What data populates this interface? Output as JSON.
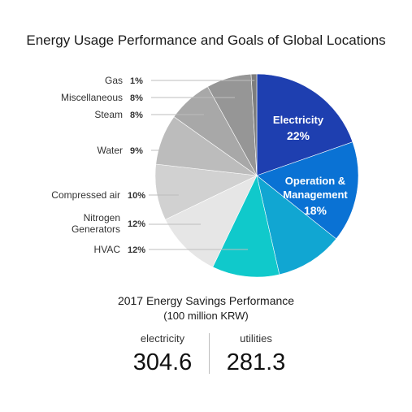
{
  "chart_data": {
    "type": "pie",
    "title": "Energy Usage Performance and Goals of Global Locations",
    "slices": [
      {
        "label": "Electricity",
        "value": 22,
        "pct": "22%",
        "color": "#1e3fb0",
        "inside": true
      },
      {
        "label": "Operation & Management",
        "label_lines": [
          "Operation &",
          "Management"
        ],
        "value": 18,
        "pct": "18%",
        "color": "#0a72d4",
        "inside": true
      },
      {
        "label": "",
        "value": 12,
        "pct": "",
        "color": "#11a6d2",
        "inside": true
      },
      {
        "label": "HVAC",
        "value": 12,
        "pct": "12%",
        "color": "#10c9cb",
        "inside": false
      },
      {
        "label": "Nitrogen Generators",
        "label_lines": [
          "Nitrogen",
          "Generators"
        ],
        "value": 12,
        "pct": "12%",
        "color": "#e6e6e6",
        "inside": false
      },
      {
        "label": "Compressed air",
        "value": 10,
        "pct": "10%",
        "color": "#d1d1d1",
        "inside": false
      },
      {
        "label": "Water",
        "value": 9,
        "pct": "9%",
        "color": "#bcbcbc",
        "inside": false
      },
      {
        "label": "Steam",
        "value": 8,
        "pct": "8%",
        "color": "#a8a8a8",
        "inside": false
      },
      {
        "label": "Miscellaneous",
        "value": 8,
        "pct": "8%",
        "color": "#969696",
        "inside": false
      },
      {
        "label": "Gas",
        "value": 1,
        "pct": "1%",
        "color": "#7d7d7d",
        "inside": false
      }
    ]
  },
  "savings": {
    "title": "2017 Energy Savings Performance",
    "unit": "(100 million KRW)",
    "items": [
      {
        "label": "electricity",
        "value": "304.6"
      },
      {
        "label": "utilities",
        "value": "281.3"
      }
    ]
  }
}
